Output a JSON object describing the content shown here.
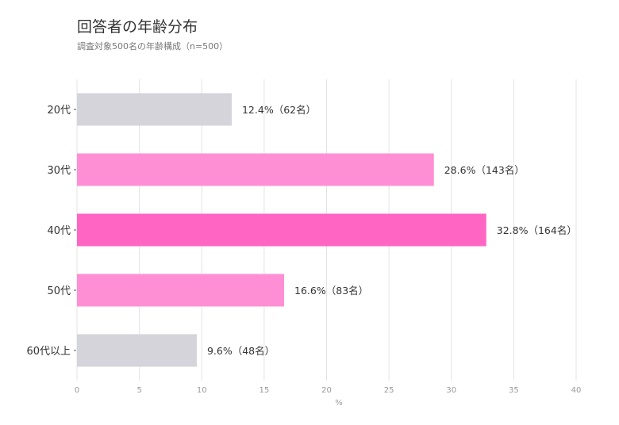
{
  "chart_data": {
    "type": "bar",
    "orientation": "horizontal",
    "title": "回答者の年齢分布",
    "subtitle": "調査対象500名の年齢構成（n=500）",
    "xlabel": "%",
    "ylabel": "",
    "xlim": [
      0,
      40
    ],
    "xticks": [
      0,
      5,
      10,
      15,
      20,
      25,
      30,
      35,
      40
    ],
    "grid": "vertical",
    "categories": [
      "20代",
      "30代",
      "40代",
      "50代",
      "60代以上"
    ],
    "values": [
      12.4,
      28.6,
      32.8,
      16.6,
      9.6
    ],
    "counts": [
      62,
      143,
      164,
      83,
      48
    ],
    "data_labels": [
      "12.4%（62名）",
      "28.6%（143名）",
      "32.8%（164名）",
      "16.6%（83名）",
      "9.6%（48名）"
    ],
    "colors": [
      "#d4d4da",
      "#ff8fd4",
      "#ff66c4",
      "#ff8fd4",
      "#d4d4da"
    ]
  }
}
